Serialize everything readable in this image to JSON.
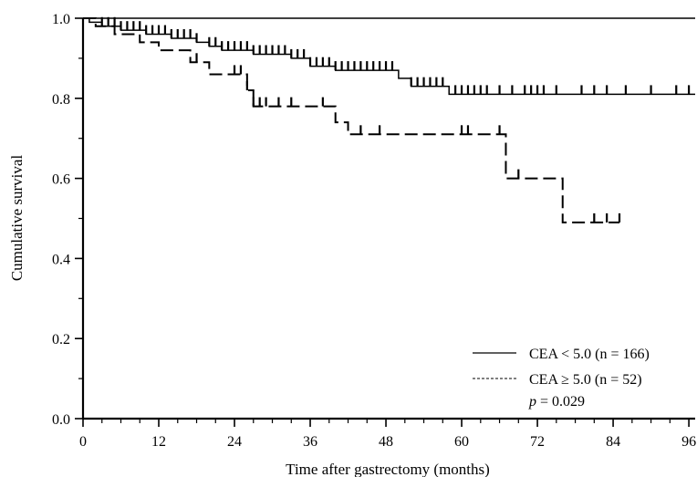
{
  "chart_data": {
    "type": "line",
    "title": "",
    "xlabel": "Time after gastrectomy (months)",
    "ylabel": "Cumulative survival",
    "xlim": [
      0,
      97
    ],
    "ylim": [
      0,
      1.0
    ],
    "x_ticks": [
      0,
      12,
      24,
      36,
      48,
      60,
      72,
      84,
      96
    ],
    "x_tick_labels": [
      "0",
      "12",
      "24",
      "36",
      "48",
      "60",
      "72",
      "84",
      "96"
    ],
    "y_ticks": [
      0,
      0.2,
      0.4,
      0.6,
      0.8,
      1.0
    ],
    "y_tick_labels": [
      "0.0",
      "0.2",
      "0.4",
      "0.6",
      "0.8",
      "1.0"
    ],
    "grid": false,
    "legend_position": "bottom-right",
    "series": [
      {
        "name": "CEA < 5.0 (n = 166)",
        "style": "solid",
        "steps": [
          [
            0,
            1.0
          ],
          [
            1,
            0.99
          ],
          [
            3,
            0.98
          ],
          [
            6,
            0.97
          ],
          [
            10,
            0.96
          ],
          [
            14,
            0.95
          ],
          [
            18,
            0.94
          ],
          [
            20,
            0.93
          ],
          [
            22,
            0.92
          ],
          [
            27,
            0.91
          ],
          [
            33,
            0.9
          ],
          [
            36,
            0.88
          ],
          [
            40,
            0.87
          ],
          [
            50,
            0.85
          ],
          [
            52,
            0.83
          ],
          [
            58,
            0.81
          ],
          [
            97,
            0.81
          ]
        ],
        "censored_x": [
          3,
          4,
          5,
          6,
          7,
          8,
          9,
          10,
          11,
          12,
          13,
          14,
          15,
          16,
          17,
          18,
          20,
          21,
          22,
          23,
          24,
          25,
          26,
          27,
          28,
          29,
          30,
          31,
          32,
          33,
          34,
          35,
          36,
          37,
          38,
          39,
          40,
          41,
          42,
          43,
          44,
          45,
          46,
          47,
          48,
          49,
          52,
          53,
          54,
          55,
          56,
          57,
          59,
          60,
          61,
          62,
          63,
          64,
          66,
          68,
          70,
          71,
          72,
          73,
          75,
          79,
          81,
          83,
          86,
          90,
          94,
          96
        ]
      },
      {
        "name": "CEA ≥ 5.0 (n = 52)",
        "style": "dashed",
        "steps": [
          [
            0,
            1.0
          ],
          [
            2,
            0.98
          ],
          [
            5,
            0.96
          ],
          [
            9,
            0.94
          ],
          [
            12,
            0.92
          ],
          [
            17,
            0.89
          ],
          [
            20,
            0.86
          ],
          [
            26,
            0.82
          ],
          [
            27,
            0.78
          ],
          [
            40,
            0.74
          ],
          [
            42,
            0.71
          ],
          [
            67,
            0.6
          ],
          [
            76,
            0.49
          ],
          [
            85,
            0.49
          ]
        ],
        "censored_x": [
          18,
          24,
          25,
          26,
          27,
          28,
          29,
          31,
          33,
          38,
          44,
          47,
          60,
          61,
          66,
          69,
          81,
          83,
          85
        ]
      },
      {
        "name": "",
        "style": "solid",
        "steps": [
          [
            0,
            1.0
          ],
          [
            97,
            1.0
          ]
        ],
        "censored_x": []
      }
    ],
    "annotations": [
      {
        "text_italic": "p",
        "text": " = 0.029"
      }
    ]
  }
}
